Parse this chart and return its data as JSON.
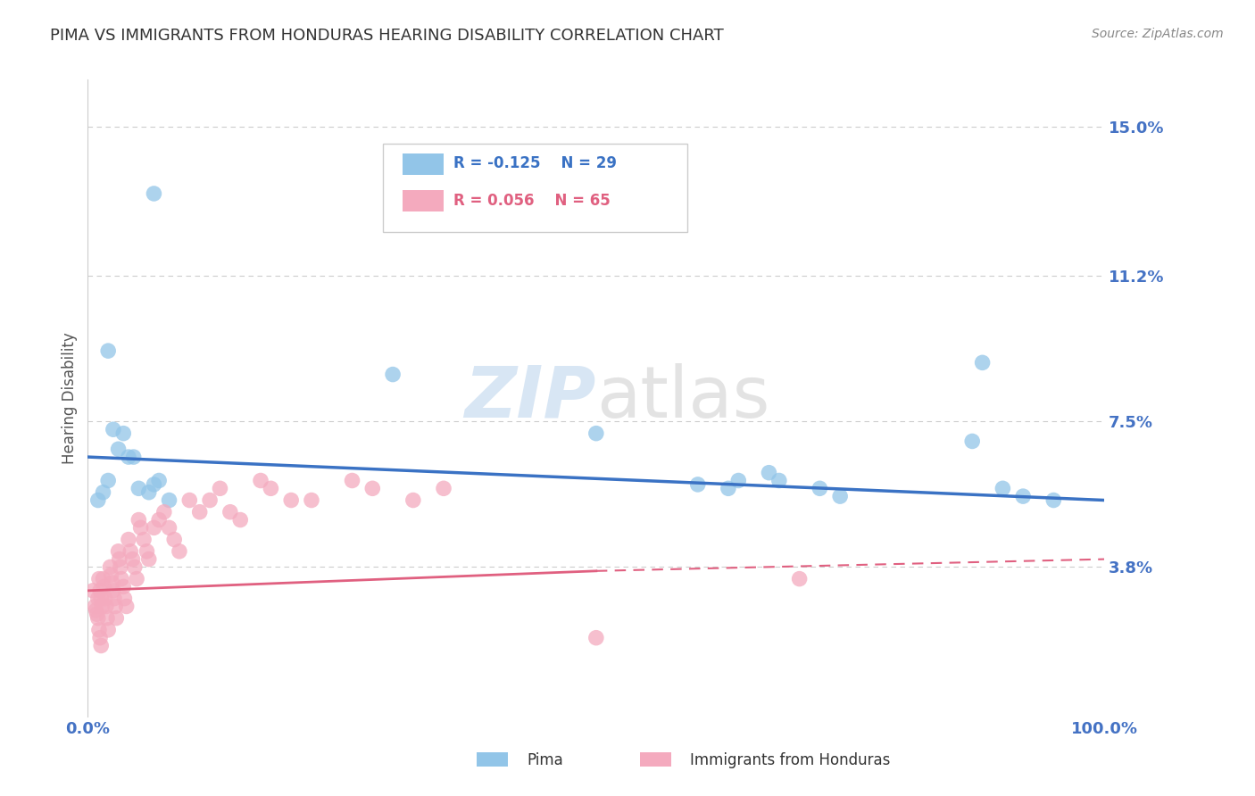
{
  "title": "PIMA VS IMMIGRANTS FROM HONDURAS HEARING DISABILITY CORRELATION CHART",
  "source_text": "Source: ZipAtlas.com",
  "ylabel": "Hearing Disability",
  "xlim": [
    0.0,
    1.0
  ],
  "ylim": [
    0.0,
    0.162
  ],
  "yticks": [
    0.038,
    0.075,
    0.112,
    0.15
  ],
  "ytick_labels": [
    "3.8%",
    "7.5%",
    "11.2%",
    "15.0%"
  ],
  "xtick_labels": [
    "0.0%",
    "100.0%"
  ],
  "xticks": [
    0.0,
    1.0
  ],
  "blue_color": "#92C5E8",
  "pink_color": "#F4AABE",
  "blue_line_color": "#3A72C4",
  "pink_line_color": "#E06080",
  "tick_color": "#4472C4",
  "grid_color": "#CCCCCC",
  "blue_scatter_x": [
    0.065,
    0.02,
    0.025,
    0.035,
    0.03,
    0.04,
    0.045,
    0.02,
    0.015,
    0.01,
    0.05,
    0.06,
    0.065,
    0.07,
    0.08,
    0.3,
    0.5,
    0.6,
    0.63,
    0.64,
    0.67,
    0.68,
    0.72,
    0.74,
    0.87,
    0.88,
    0.9,
    0.92,
    0.95
  ],
  "blue_scatter_y": [
    0.133,
    0.093,
    0.073,
    0.072,
    0.068,
    0.066,
    0.066,
    0.06,
    0.057,
    0.055,
    0.058,
    0.057,
    0.059,
    0.06,
    0.055,
    0.087,
    0.072,
    0.059,
    0.058,
    0.06,
    0.062,
    0.06,
    0.058,
    0.056,
    0.07,
    0.09,
    0.058,
    0.056,
    0.055
  ],
  "pink_scatter_x": [
    0.005,
    0.007,
    0.008,
    0.009,
    0.01,
    0.011,
    0.012,
    0.013,
    0.014,
    0.01,
    0.011,
    0.012,
    0.013,
    0.015,
    0.016,
    0.017,
    0.018,
    0.019,
    0.02,
    0.022,
    0.023,
    0.024,
    0.025,
    0.026,
    0.027,
    0.028,
    0.03,
    0.031,
    0.032,
    0.033,
    0.035,
    0.036,
    0.038,
    0.04,
    0.042,
    0.044,
    0.046,
    0.048,
    0.05,
    0.052,
    0.055,
    0.058,
    0.06,
    0.065,
    0.07,
    0.075,
    0.08,
    0.085,
    0.09,
    0.1,
    0.11,
    0.12,
    0.13,
    0.14,
    0.15,
    0.17,
    0.18,
    0.2,
    0.22,
    0.26,
    0.28,
    0.32,
    0.35,
    0.5,
    0.7
  ],
  "pink_scatter_y": [
    0.032,
    0.028,
    0.027,
    0.026,
    0.03,
    0.035,
    0.032,
    0.03,
    0.028,
    0.025,
    0.022,
    0.02,
    0.018,
    0.035,
    0.033,
    0.03,
    0.028,
    0.025,
    0.022,
    0.038,
    0.036,
    0.034,
    0.032,
    0.03,
    0.028,
    0.025,
    0.042,
    0.04,
    0.038,
    0.035,
    0.033,
    0.03,
    0.028,
    0.045,
    0.042,
    0.04,
    0.038,
    0.035,
    0.05,
    0.048,
    0.045,
    0.042,
    0.04,
    0.048,
    0.05,
    0.052,
    0.048,
    0.045,
    0.042,
    0.055,
    0.052,
    0.055,
    0.058,
    0.052,
    0.05,
    0.06,
    0.058,
    0.055,
    0.055,
    0.06,
    0.058,
    0.055,
    0.058,
    0.02,
    0.035
  ],
  "blue_line_x": [
    0.0,
    1.0
  ],
  "blue_line_y": [
    0.066,
    0.055
  ],
  "pink_solid_line_x": [
    0.0,
    0.5
  ],
  "pink_solid_line_y": [
    0.032,
    0.037
  ],
  "pink_dash_line_x": [
    0.5,
    1.0
  ],
  "pink_dash_line_y": [
    0.037,
    0.04
  ]
}
